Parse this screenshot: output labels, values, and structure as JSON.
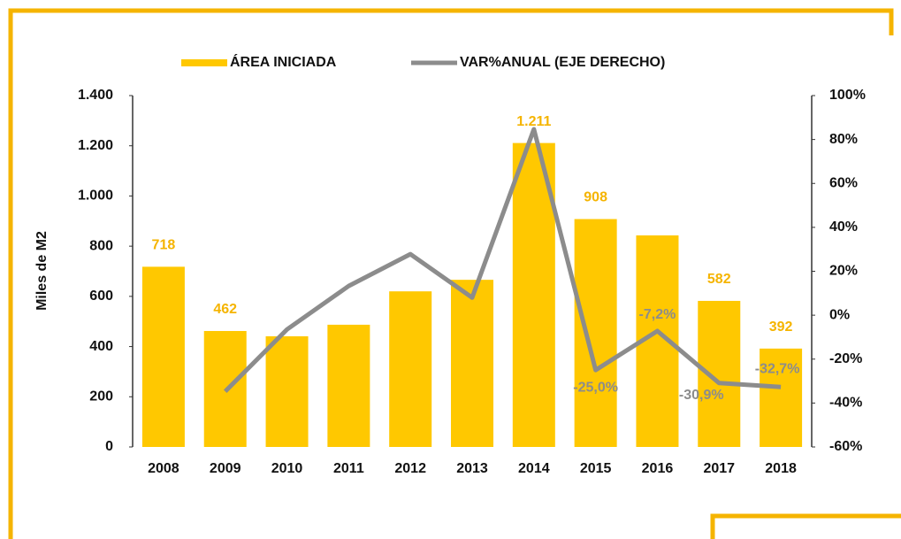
{
  "chart_data": {
    "type": "bar_line",
    "y_axis_label": "Miles de M2",
    "categories": [
      "2008",
      "2009",
      "2010",
      "2011",
      "2012",
      "2013",
      "2014",
      "2015",
      "2016",
      "2017",
      "2018"
    ],
    "series": [
      {
        "name": "ÁREA INICIADA",
        "type": "bar",
        "color": "#ffc800",
        "label_color": "#f5b400",
        "values": [
          718,
          462,
          441,
          487,
          620,
          666,
          1211,
          908,
          843,
          582,
          392
        ],
        "value_labels": [
          "718",
          "462",
          null,
          null,
          null,
          null,
          "1.211",
          "908",
          null,
          "582",
          "392"
        ]
      },
      {
        "name": "VAR%ANUAL (EJE DERECHO)",
        "type": "line",
        "axis": "y2",
        "color": "#8c8c8c",
        "label_color": "#8c8c8c",
        "values": [
          null,
          -34.7,
          -6.5,
          13.3,
          27.8,
          8.0,
          84.7,
          -25.0,
          -7.2,
          -30.9,
          -32.7
        ],
        "value_labels": [
          null,
          null,
          null,
          null,
          null,
          null,
          null,
          "-25,0%",
          "-7,2%",
          "-30,9%",
          "-32,7%"
        ]
      }
    ],
    "ylim": [
      0,
      1400
    ],
    "yticks": [
      0,
      200,
      400,
      600,
      800,
      {
        "value": 1000,
        "label": "1.000"
      },
      {
        "value": 1200,
        "label": "1.200"
      },
      {
        "value": 1400,
        "label": "1.400"
      }
    ],
    "y2lim": [
      -60,
      100
    ],
    "y2ticks": [
      {
        "value": -60,
        "label": "-60%"
      },
      {
        "value": -40,
        "label": "-40%"
      },
      {
        "value": -20,
        "label": "-20%"
      },
      {
        "value": 0,
        "label": "0%"
      },
      {
        "value": 20,
        "label": "20%"
      },
      {
        "value": 40,
        "label": "40%"
      },
      {
        "value": 60,
        "label": "60%"
      },
      {
        "value": 80,
        "label": "80%"
      },
      {
        "value": 100,
        "label": "100%"
      }
    ],
    "grid": false,
    "legend": "top"
  }
}
